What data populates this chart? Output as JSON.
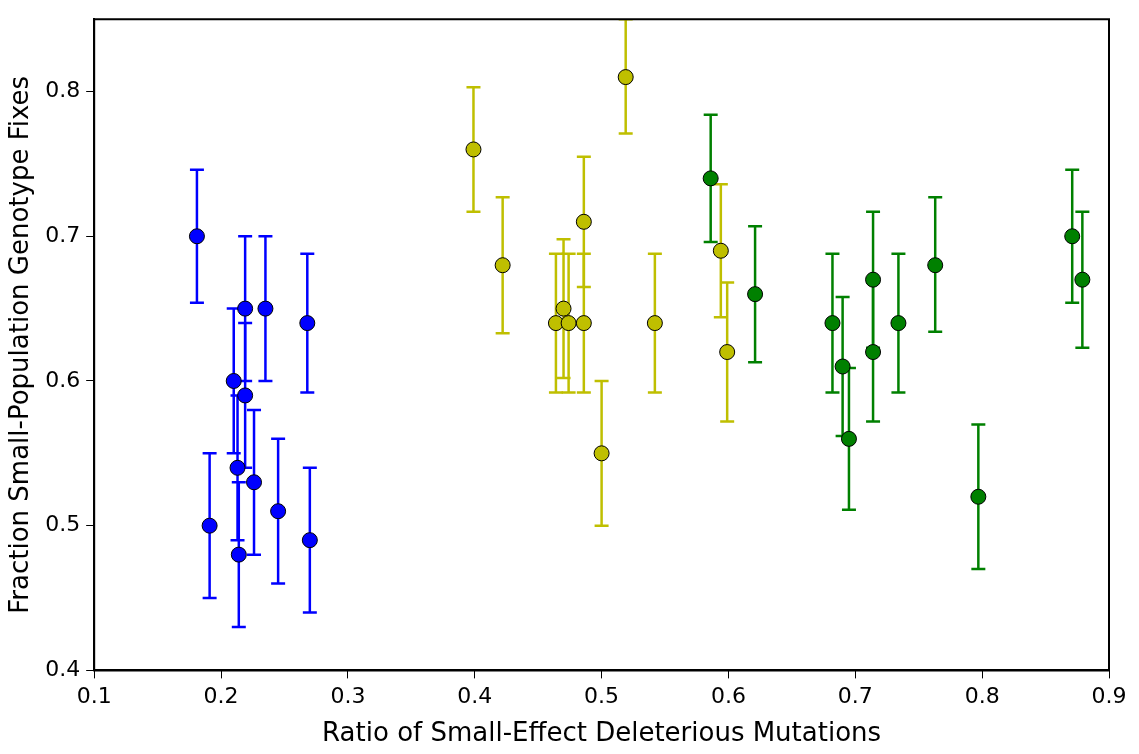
{
  "chart_data": {
    "type": "scatter",
    "xlabel": "Ratio of Small-Effect Deleterious Mutations",
    "ylabel": "Fraction Small-Population Genotype Fixes",
    "xlim": [
      0.1,
      0.9
    ],
    "xticks": [
      0.1,
      0.2,
      0.3,
      0.4,
      0.5,
      0.6,
      0.7,
      0.8,
      0.9
    ],
    "ylim": [
      0.4,
      0.85
    ],
    "yticks": [
      0.4,
      0.5,
      0.6,
      0.7,
      0.8
    ],
    "grid": false,
    "legend": false,
    "marker": "circle",
    "series": [
      {
        "color": "#0000ff",
        "x": [
          0.181,
          0.191,
          0.21,
          0.213,
          0.214,
          0.219,
          0.219,
          0.226,
          0.235,
          0.245,
          0.268,
          0.27
        ],
        "values": [
          0.7,
          0.5,
          0.6,
          0.54,
          0.48,
          0.59,
          0.65,
          0.53,
          0.65,
          0.51,
          0.64,
          0.49
        ],
        "errors": [
          [
            0.654,
            0.746
          ],
          [
            0.45,
            0.55
          ],
          [
            0.55,
            0.65
          ],
          [
            0.49,
            0.59
          ],
          [
            0.43,
            0.53
          ],
          [
            0.54,
            0.64
          ],
          [
            0.6,
            0.7
          ],
          [
            0.48,
            0.58
          ],
          [
            0.6,
            0.7
          ],
          [
            0.46,
            0.56
          ],
          [
            0.592,
            0.688
          ],
          [
            0.44,
            0.54
          ]
        ]
      },
      {
        "color": "#bfbf00",
        "x": [
          0.399,
          0.422,
          0.464,
          0.47,
          0.474,
          0.486,
          0.486,
          0.5,
          0.519,
          0.542,
          0.594,
          0.599
        ],
        "values": [
          0.76,
          0.68,
          0.64,
          0.65,
          0.64,
          0.71,
          0.64,
          0.55,
          0.81,
          0.64,
          0.69,
          0.62
        ],
        "errors": [
          [
            0.717,
            0.803
          ],
          [
            0.633,
            0.727
          ],
          [
            0.592,
            0.688
          ],
          [
            0.602,
            0.698
          ],
          [
            0.592,
            0.688
          ],
          [
            0.665,
            0.755
          ],
          [
            0.592,
            0.688
          ],
          [
            0.5,
            0.6
          ],
          [
            0.771,
            0.85
          ],
          [
            0.592,
            0.688
          ],
          [
            0.644,
            0.736
          ],
          [
            0.572,
            0.668
          ]
        ]
      },
      {
        "color": "#008000",
        "x": [
          0.586,
          0.621,
          0.682,
          0.69,
          0.695,
          0.714,
          0.714,
          0.734,
          0.763,
          0.797,
          0.871,
          0.879
        ],
        "values": [
          0.74,
          0.66,
          0.64,
          0.61,
          0.56,
          0.67,
          0.62,
          0.64,
          0.68,
          0.52,
          0.7,
          0.67
        ],
        "errors": [
          [
            0.696,
            0.784
          ],
          [
            0.613,
            0.707
          ],
          [
            0.592,
            0.688
          ],
          [
            0.562,
            0.658
          ],
          [
            0.511,
            0.609
          ],
          [
            0.623,
            0.717
          ],
          [
            0.572,
            0.668
          ],
          [
            0.592,
            0.688
          ],
          [
            0.634,
            0.727
          ],
          [
            0.47,
            0.57
          ],
          [
            0.654,
            0.746
          ],
          [
            0.623,
            0.717
          ]
        ]
      }
    ]
  }
}
